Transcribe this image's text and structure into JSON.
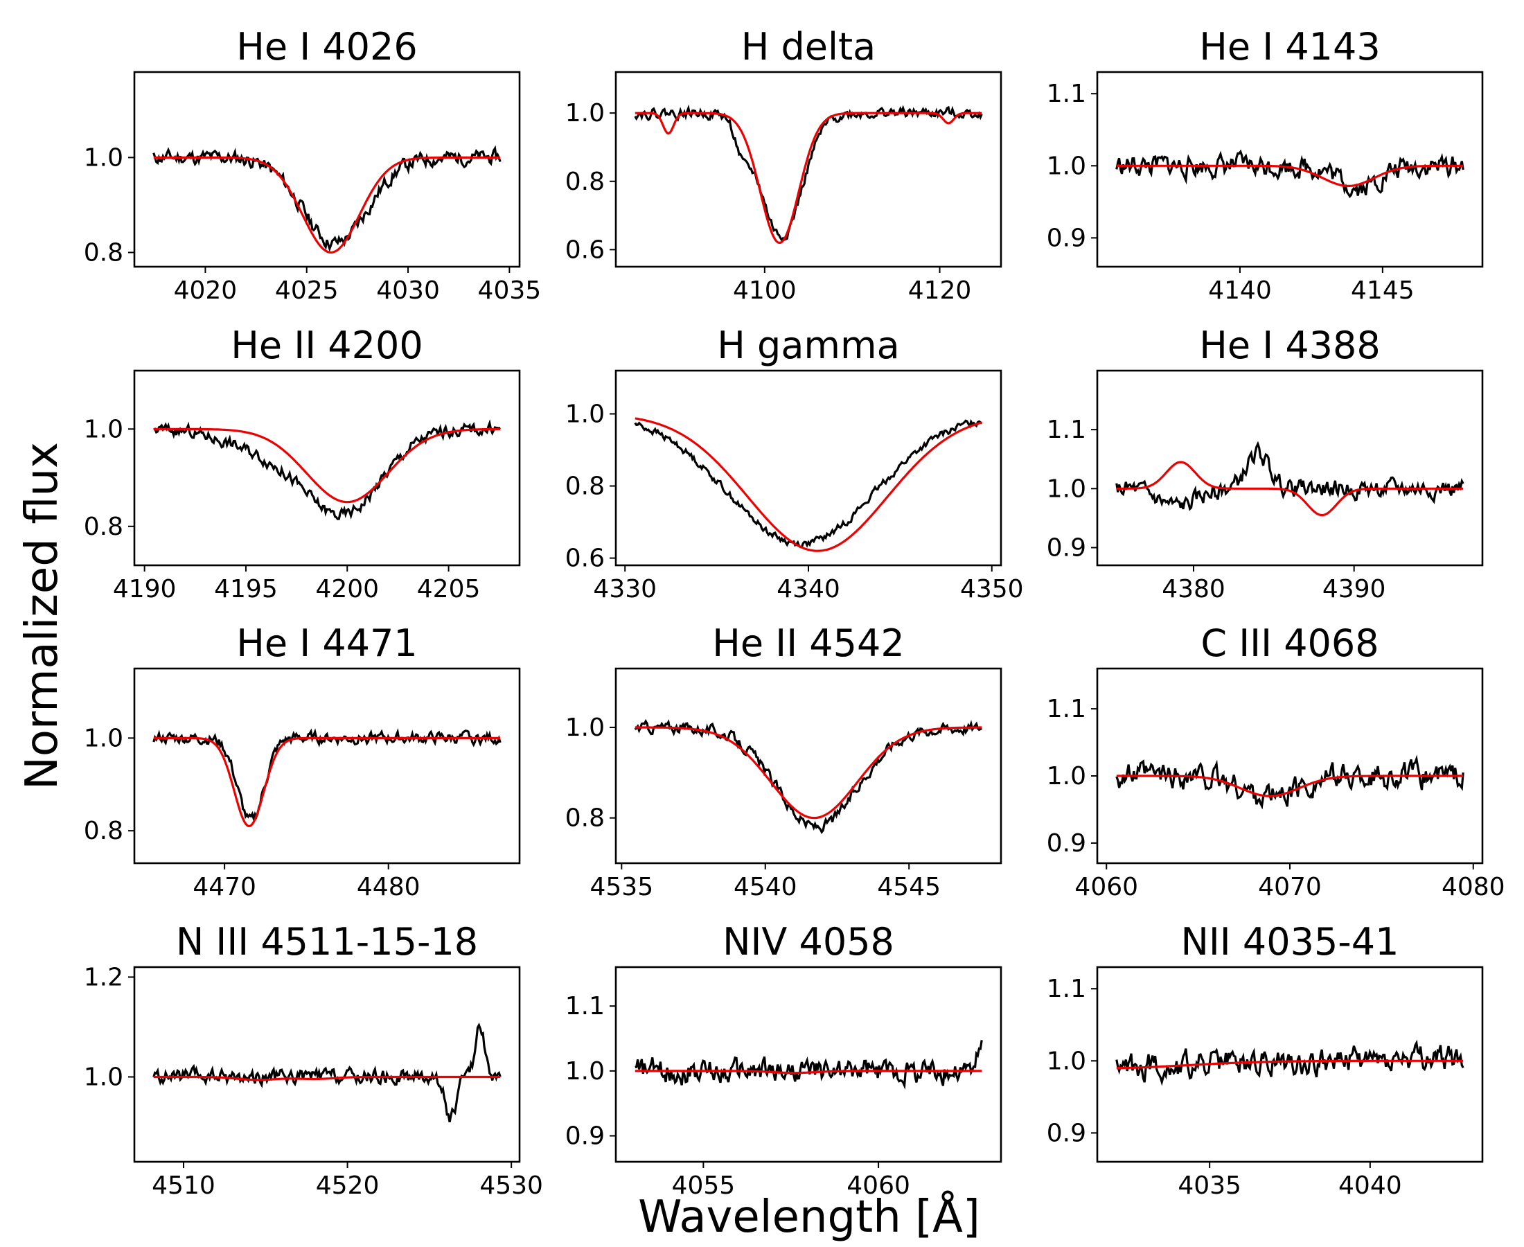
{
  "figure": {
    "ylabel": "Normalized flux",
    "xlabel": "Wavelength [Å]",
    "colors": {
      "observed": "#000000",
      "model": "#ee0000"
    }
  },
  "chart_data": [
    {
      "type": "line",
      "title": "He I 4026",
      "xlim": [
        4016.5,
        4035.5
      ],
      "ylim": [
        0.77,
        1.18
      ],
      "xticks": [
        4020,
        4025,
        4030,
        4035
      ],
      "xtick_labels": [
        "4020",
        "4025",
        "4030",
        "4035"
      ],
      "yticks": [
        0.8,
        1.0
      ],
      "ytick_labels": [
        "0.8",
        "1.0"
      ],
      "model_lines": [
        {
          "c": 4026.2,
          "d": 0.2,
          "w": 1.4
        }
      ],
      "noise": 0.012,
      "seed": 11,
      "obs_lines": [
        {
          "c": 4026.4,
          "d": 0.18,
          "w": 1.6
        }
      ]
    },
    {
      "type": "line",
      "title": "H delta",
      "xlim": [
        4083,
        4127
      ],
      "ylim": [
        0.55,
        1.12
      ],
      "xticks": [
        4100,
        4120
      ],
      "xtick_labels": [
        "4100",
        "4120"
      ],
      "yticks": [
        0.6,
        0.8,
        1.0
      ],
      "ytick_labels": [
        "0.6",
        "0.8",
        "1.0"
      ],
      "model_lines": [
        {
          "c": 4101.7,
          "d": 0.38,
          "w": 2.2
        },
        {
          "c": 4089,
          "d": 0.06,
          "w": 0.6
        },
        {
          "c": 4121,
          "d": 0.03,
          "w": 0.6
        }
      ],
      "noise": 0.012,
      "seed": 22,
      "obs_lines": [
        {
          "c": 4101.9,
          "d": 0.36,
          "w": 2.4
        },
        {
          "c": 4097.5,
          "d": 0.08,
          "w": 0.8
        }
      ]
    },
    {
      "type": "line",
      "title": "He I 4143",
      "xlim": [
        4135,
        4148.5
      ],
      "ylim": [
        0.86,
        1.13
      ],
      "xticks": [
        4140,
        4145
      ],
      "xtick_labels": [
        "4140",
        "4145"
      ],
      "yticks": [
        0.9,
        1.0,
        1.1
      ],
      "ytick_labels": [
        "0.9",
        "1.0",
        "1.1"
      ],
      "model_lines": [
        {
          "c": 4143.8,
          "d": 0.028,
          "w": 0.9
        }
      ],
      "noise": 0.012,
      "seed": 33,
      "obs_lines": [
        {
          "c": 4144.2,
          "d": 0.03,
          "w": 0.7
        }
      ]
    },
    {
      "type": "line",
      "title": "He II 4200",
      "xlim": [
        4189.5,
        4208.5
      ],
      "ylim": [
        0.72,
        1.12
      ],
      "xticks": [
        4190,
        4195,
        4200,
        4205
      ],
      "xtick_labels": [
        "4190",
        "4195",
        "4200",
        "4205"
      ],
      "yticks": [
        0.8,
        1.0
      ],
      "ytick_labels": [
        "0.8",
        "1.0"
      ],
      "model_lines": [
        {
          "c": 4200,
          "d": 0.15,
          "w": 2.0
        }
      ],
      "noise": 0.01,
      "seed": 44,
      "obs_lines": [
        {
          "c": 4199.8,
          "d": 0.17,
          "w": 1.9
        },
        {
          "c": 4196,
          "d": 0.04,
          "w": 2.0
        }
      ]
    },
    {
      "type": "line",
      "title": "H gamma",
      "xlim": [
        4329.5,
        4350.5
      ],
      "ylim": [
        0.58,
        1.12
      ],
      "xticks": [
        4330,
        4340,
        4350
      ],
      "xtick_labels": [
        "4330",
        "4340",
        "4350"
      ],
      "yticks": [
        0.6,
        0.8,
        1.0
      ],
      "ytick_labels": [
        "0.6",
        "0.8",
        "1.0"
      ],
      "model_lines": [
        {
          "c": 4340.5,
          "d": 0.38,
          "w": 3.8
        }
      ],
      "noise": 0.008,
      "seed": 55,
      "obs_lines": [
        {
          "c": 4339.6,
          "d": 0.36,
          "w": 4.0
        }
      ]
    },
    {
      "type": "line",
      "title": "He I 4388",
      "xlim": [
        4374,
        4398
      ],
      "ylim": [
        0.87,
        1.2
      ],
      "xticks": [
        4380,
        4390
      ],
      "xtick_labels": [
        "4380",
        "4390"
      ],
      "yticks": [
        0.9,
        1.0,
        1.1
      ],
      "ytick_labels": [
        "0.9",
        "1.0",
        "1.1"
      ],
      "model_lines": [
        {
          "c": 4379.2,
          "d": -0.045,
          "w": 0.9
        },
        {
          "c": 4388,
          "d": 0.045,
          "w": 0.9
        }
      ],
      "noise": 0.012,
      "seed": 66,
      "obs_lines": [
        {
          "c": 4384,
          "d": -0.06,
          "w": 0.7
        },
        {
          "c": 4379,
          "d": 0.03,
          "w": 1.2
        }
      ]
    },
    {
      "type": "line",
      "title": "He I 4471",
      "xlim": [
        4464.5,
        4488
      ],
      "ylim": [
        0.73,
        1.15
      ],
      "xticks": [
        4470,
        4480
      ],
      "xtick_labels": [
        "4470",
        "4480"
      ],
      "yticks": [
        0.8,
        1.0
      ],
      "ytick_labels": [
        "0.8",
        "1.0"
      ],
      "model_lines": [
        {
          "c": 4471.5,
          "d": 0.19,
          "w": 0.9
        }
      ],
      "noise": 0.01,
      "seed": 77,
      "obs_lines": [
        {
          "c": 4471.6,
          "d": 0.18,
          "w": 0.8
        }
      ]
    },
    {
      "type": "line",
      "title": "He II 4542",
      "xlim": [
        4534.8,
        4548.2
      ],
      "ylim": [
        0.7,
        1.13
      ],
      "xticks": [
        4535,
        4540,
        4545
      ],
      "xtick_labels": [
        "4535",
        "4540",
        "4545"
      ],
      "yticks": [
        0.8,
        1.0
      ],
      "ytick_labels": [
        "0.8",
        "1.0"
      ],
      "model_lines": [
        {
          "c": 4541.7,
          "d": 0.2,
          "w": 1.5
        }
      ],
      "noise": 0.01,
      "seed": 88,
      "obs_lines": [
        {
          "c": 4541.8,
          "d": 0.22,
          "w": 1.4
        }
      ]
    },
    {
      "type": "line",
      "title": "C III 4068",
      "xlim": [
        4059.5,
        4080.5
      ],
      "ylim": [
        0.87,
        1.16
      ],
      "xticks": [
        4060,
        4070,
        4080
      ],
      "xtick_labels": [
        "4060",
        "4070",
        "4080"
      ],
      "yticks": [
        0.9,
        1.0,
        1.1
      ],
      "ytick_labels": [
        "0.9",
        "1.0",
        "1.1"
      ],
      "model_lines": [
        {
          "c": 4068.9,
          "d": 0.03,
          "w": 1.6
        }
      ],
      "noise": 0.015,
      "seed": 99,
      "obs_lines": []
    },
    {
      "type": "line",
      "title": "N III 4511-15-18",
      "xlim": [
        4507,
        4530.5
      ],
      "ylim": [
        0.83,
        1.22
      ],
      "xticks": [
        4510,
        4520,
        4530
      ],
      "xtick_labels": [
        "4510",
        "4520",
        "4530"
      ],
      "yticks": [
        1.0,
        1.2
      ],
      "ytick_labels": [
        "1.0",
        "1.2"
      ],
      "model_lines": [
        {
          "c": 4514.5,
          "d": 0.006,
          "w": 1.2
        },
        {
          "c": 4518,
          "d": 0.004,
          "w": 1.2
        }
      ],
      "noise": 0.012,
      "seed": 111,
      "obs_lines": [
        {
          "c": 4526.3,
          "d": 0.08,
          "w": 0.35
        },
        {
          "c": 4528.1,
          "d": -0.1,
          "w": 0.3
        }
      ]
    },
    {
      "type": "line",
      "title": "NIV 4058",
      "xlim": [
        4052.5,
        4063.5
      ],
      "ylim": [
        0.86,
        1.16
      ],
      "xticks": [
        4055,
        4060
      ],
      "xtick_labels": [
        "4055",
        "4060"
      ],
      "yticks": [
        0.9,
        1.0,
        1.1
      ],
      "ytick_labels": [
        "0.9",
        "1.0",
        "1.1"
      ],
      "model_lines": [
        {
          "c": 4057.6,
          "d": 0.003,
          "w": 0.6
        }
      ],
      "noise": 0.015,
      "seed": 122,
      "obs_lines": [
        {
          "c": 4063.2,
          "d": -0.06,
          "w": 0.25
        }
      ]
    },
    {
      "type": "line",
      "title": "NII 4035-41",
      "xlim": [
        4031.5,
        4043.5
      ],
      "ylim": [
        0.86,
        1.13
      ],
      "xticks": [
        4035,
        4040
      ],
      "xtick_labels": [
        "4035",
        "4040"
      ],
      "yticks": [
        0.9,
        1.0,
        1.1
      ],
      "ytick_labels": [
        "0.9",
        "1.0",
        "1.1"
      ],
      "model_lines": [
        {
          "c": 4031.8,
          "d": 0.01,
          "w": 2.5
        }
      ],
      "noise": 0.015,
      "seed": 133,
      "obs_lines": []
    }
  ]
}
